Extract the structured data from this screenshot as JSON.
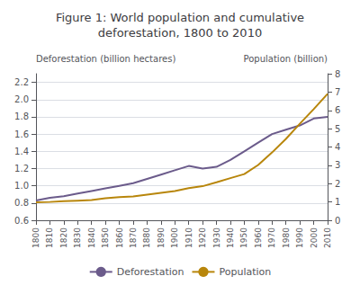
{
  "chart_data": {
    "type": "line",
    "title": "Figure 1: World population and cumulative\ndeforestation, 1800 to 2010",
    "ylabel": "Deforestation (billion hectares)",
    "y2label": "Population (billion)",
    "x": [
      1800,
      1810,
      1820,
      1830,
      1840,
      1850,
      1860,
      1870,
      1880,
      1890,
      1900,
      1910,
      1920,
      1930,
      1940,
      1950,
      1960,
      1970,
      1980,
      1990,
      2000,
      2010
    ],
    "xlim": [
      1800,
      2010
    ],
    "xticks": [
      1800,
      1810,
      1820,
      1830,
      1840,
      1850,
      1860,
      1870,
      1880,
      1890,
      1900,
      1910,
      1920,
      1930,
      1940,
      1950,
      1960,
      1970,
      1980,
      1990,
      2000,
      2010
    ],
    "ylim": [
      0.6,
      2.3
    ],
    "yticks": [
      0.6,
      0.8,
      {
        "value": 1.0,
        "label": "1.0"
      },
      1.2,
      1.4,
      1.6,
      1.8,
      {
        "value": 2.0,
        "label": "2.0"
      },
      2.2
    ],
    "y2lim": [
      0,
      8
    ],
    "y2ticks": [
      0,
      1,
      2,
      3,
      4,
      5,
      6,
      7,
      8
    ],
    "grid": true,
    "legend": "bottom",
    "series": [
      {
        "name": "Deforestation",
        "color": "#6B5B8B",
        "values": [
          0.83,
          0.86,
          0.88,
          0.91,
          0.94,
          0.97,
          1.0,
          1.03,
          1.08,
          1.13,
          1.18,
          1.23,
          1.2,
          1.22,
          1.3,
          1.4,
          1.5,
          1.6,
          1.65,
          1.7,
          1.78,
          1.8
        ]
      },
      {
        "name": "Population",
        "color": "#B8860B",
        "axis": "y2",
        "values": [
          0.98,
          1.0,
          1.04,
          1.07,
          1.1,
          1.2,
          1.26,
          1.3,
          1.4,
          1.5,
          1.6,
          1.75,
          1.86,
          2.07,
          2.3,
          2.52,
          3.02,
          3.7,
          4.44,
          5.27,
          6.07,
          6.9
        ]
      }
    ]
  }
}
